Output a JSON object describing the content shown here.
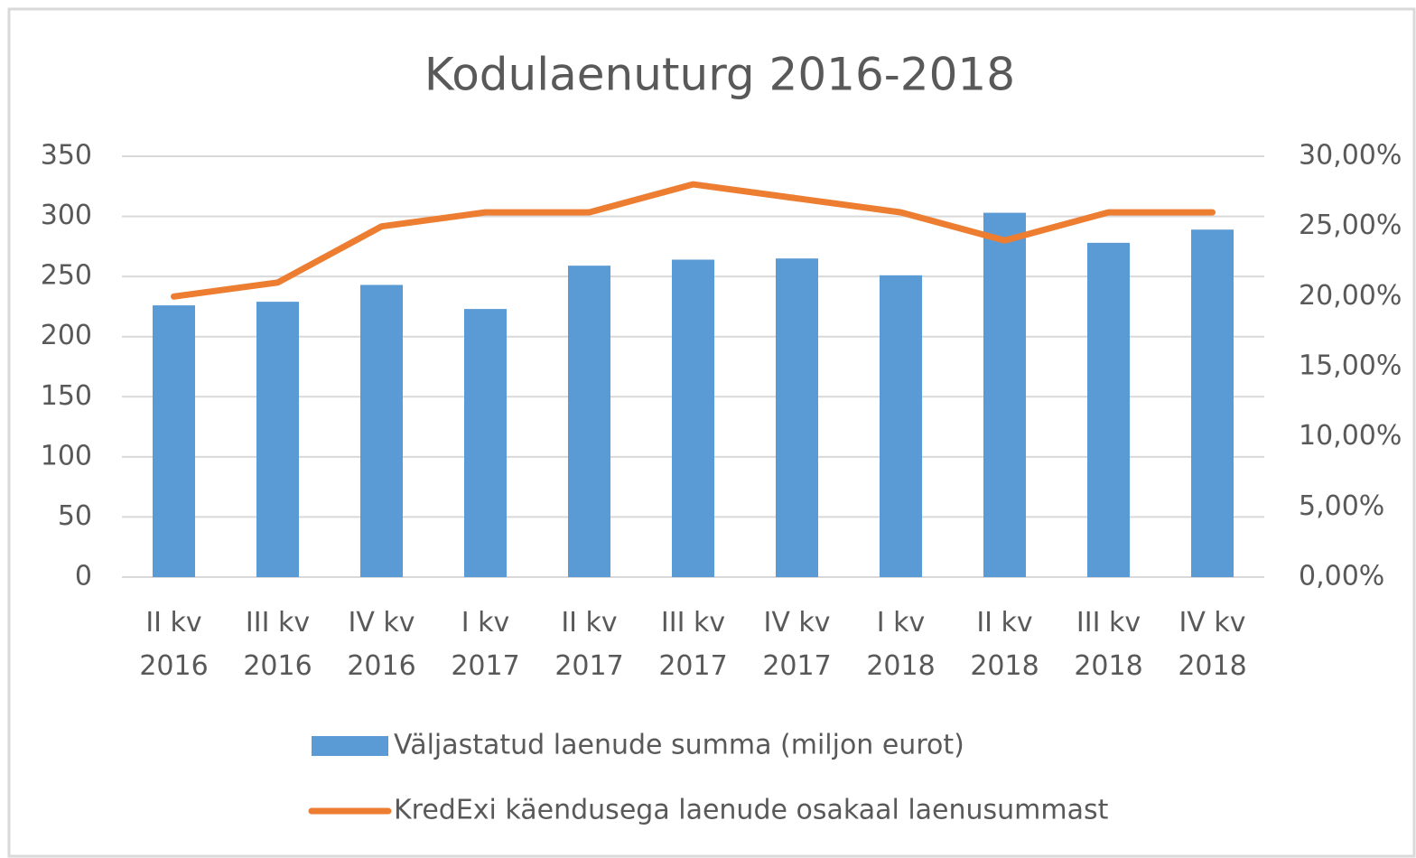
{
  "chart_data": {
    "type": "bar",
    "title": "Kodulaenuturg 2016-2018",
    "categories": [
      "II kv 2016",
      "III kv 2016",
      "IV kv 2016",
      "I kv 2017",
      "II kv 2017",
      "III kv 2017",
      "IV kv 2017",
      "I kv 2018",
      "II kv 2018",
      "III kv 2018",
      "IV kv 2018"
    ],
    "series": [
      {
        "name": "Väljastatud laenude summa (miljon eurot)",
        "type": "bar",
        "color": "#5b9bd5",
        "values": [
          226,
          229,
          243,
          223,
          259,
          264,
          265,
          251,
          303,
          278,
          289
        ]
      },
      {
        "name": "KredExi käendusega laenude osakaal laenusummast",
        "type": "line",
        "axis": "y2",
        "color": "#ed7d31",
        "values": [
          20,
          21,
          25,
          26,
          26,
          28,
          27,
          26,
          24,
          26,
          26
        ]
      }
    ],
    "ylim": [
      0,
      350
    ],
    "yticks": [
      0,
      50,
      100,
      150,
      200,
      250,
      300,
      350
    ],
    "y2lim": [
      0,
      30
    ],
    "y2ticks": [
      {
        "value": 0,
        "label": "0,00%"
      },
      {
        "value": 5,
        "label": "5,00%"
      },
      {
        "value": 10,
        "label": "10,00%"
      },
      {
        "value": 15,
        "label": "15,00%"
      },
      {
        "value": 20,
        "label": "20,00%"
      },
      {
        "value": 25,
        "label": "25,00%"
      },
      {
        "value": 30,
        "label": "30,00%"
      }
    ],
    "grid": true,
    "legend": "bottom"
  }
}
